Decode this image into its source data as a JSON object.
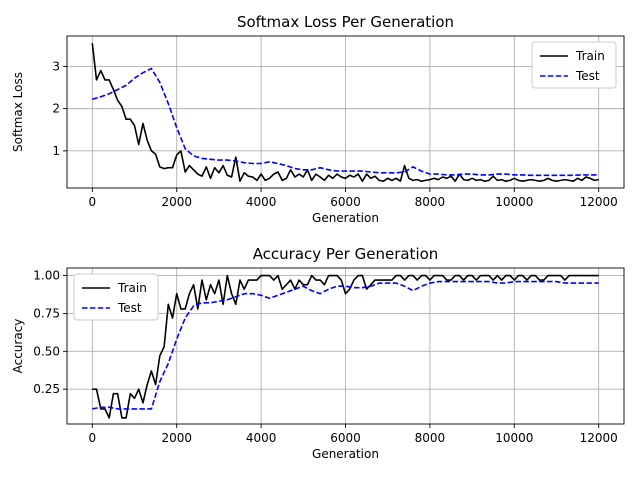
{
  "chart_data": [
    {
      "type": "line",
      "title": "Softmax Loss Per Generation",
      "xlabel": "Generation",
      "ylabel": "Softmax Loss",
      "xlim": [
        -600,
        12600
      ],
      "ylim": [
        0.12,
        3.72
      ],
      "xticks": [
        0,
        2000,
        4000,
        6000,
        8000,
        10000,
        12000
      ],
      "yticks": [
        1,
        2,
        3
      ],
      "grid": true,
      "legend": "top-right",
      "series": [
        {
          "name": "Train",
          "color": "#000000",
          "style": "solid",
          "x": [
            0,
            100,
            200,
            300,
            400,
            500,
            600,
            700,
            800,
            900,
            1000,
            1100,
            1200,
            1300,
            1400,
            1500,
            1600,
            1700,
            1800,
            1900,
            2000,
            2100,
            2200,
            2300,
            2400,
            2500,
            2600,
            2700,
            2800,
            2900,
            3000,
            3100,
            3200,
            3300,
            3400,
            3500,
            3600,
            3700,
            3800,
            3900,
            4000,
            4100,
            4200,
            4300,
            4400,
            4500,
            4600,
            4700,
            4800,
            4900,
            5000,
            5100,
            5200,
            5300,
            5400,
            5500,
            5600,
            5700,
            5800,
            5900,
            6000,
            6100,
            6200,
            6300,
            6400,
            6500,
            6600,
            6700,
            6800,
            6900,
            7000,
            7100,
            7200,
            7300,
            7400,
            7500,
            7600,
            7700,
            7800,
            7900,
            8000,
            8100,
            8200,
            8300,
            8400,
            8500,
            8600,
            8700,
            8800,
            8900,
            9000,
            9100,
            9200,
            9300,
            9400,
            9500,
            9600,
            9700,
            9800,
            9900,
            10000,
            10100,
            10200,
            10300,
            10400,
            10500,
            10600,
            10700,
            10800,
            10900,
            11000,
            11100,
            11200,
            11300,
            11400,
            11500,
            11600,
            11700,
            11800,
            11900,
            12000
          ],
          "values": [
            3.55,
            2.68,
            2.9,
            2.68,
            2.68,
            2.45,
            2.2,
            2.05,
            1.75,
            1.75,
            1.6,
            1.15,
            1.65,
            1.25,
            1.0,
            0.92,
            0.62,
            0.58,
            0.6,
            0.6,
            0.9,
            1.0,
            0.5,
            0.65,
            0.55,
            0.45,
            0.4,
            0.62,
            0.35,
            0.6,
            0.48,
            0.65,
            0.42,
            0.38,
            0.85,
            0.28,
            0.48,
            0.4,
            0.38,
            0.3,
            0.45,
            0.3,
            0.35,
            0.45,
            0.5,
            0.3,
            0.35,
            0.55,
            0.38,
            0.45,
            0.38,
            0.55,
            0.3,
            0.45,
            0.38,
            0.3,
            0.42,
            0.35,
            0.45,
            0.38,
            0.35,
            0.42,
            0.38,
            0.45,
            0.28,
            0.45,
            0.35,
            0.4,
            0.3,
            0.28,
            0.35,
            0.3,
            0.35,
            0.28,
            0.65,
            0.35,
            0.3,
            0.32,
            0.28,
            0.3,
            0.32,
            0.35,
            0.32,
            0.38,
            0.35,
            0.4,
            0.28,
            0.45,
            0.32,
            0.3,
            0.35,
            0.3,
            0.32,
            0.28,
            0.3,
            0.4,
            0.3,
            0.32,
            0.28,
            0.3,
            0.35,
            0.3,
            0.28,
            0.3,
            0.32,
            0.3,
            0.28,
            0.3,
            0.35,
            0.3,
            0.28,
            0.3,
            0.32,
            0.3,
            0.28,
            0.35,
            0.3,
            0.38,
            0.35,
            0.3,
            0.32
          ]
        },
        {
          "name": "Test",
          "color": "#0000ff",
          "style": "dashed",
          "x": [
            0,
            200,
            400,
            600,
            800,
            1000,
            1200,
            1400,
            1600,
            1800,
            2000,
            2200,
            2400,
            2600,
            2800,
            3000,
            3200,
            3400,
            3600,
            3800,
            4000,
            4200,
            4400,
            4600,
            4800,
            5000,
            5200,
            5400,
            5600,
            5800,
            6000,
            6200,
            6400,
            6600,
            6800,
            7000,
            7200,
            7400,
            7600,
            7800,
            8000,
            8200,
            8400,
            8600,
            8800,
            9000,
            9200,
            9400,
            9600,
            9800,
            10000,
            10200,
            10400,
            10600,
            10800,
            11000,
            11200,
            11400,
            11600,
            11800,
            12000
          ],
          "values": [
            2.22,
            2.28,
            2.35,
            2.45,
            2.55,
            2.72,
            2.85,
            2.95,
            2.62,
            2.12,
            1.55,
            1.05,
            0.88,
            0.82,
            0.8,
            0.78,
            0.78,
            0.76,
            0.72,
            0.7,
            0.7,
            0.74,
            0.7,
            0.65,
            0.58,
            0.55,
            0.55,
            0.6,
            0.55,
            0.52,
            0.52,
            0.52,
            0.52,
            0.5,
            0.48,
            0.48,
            0.48,
            0.5,
            0.62,
            0.52,
            0.45,
            0.45,
            0.43,
            0.43,
            0.45,
            0.45,
            0.43,
            0.43,
            0.45,
            0.45,
            0.43,
            0.43,
            0.42,
            0.42,
            0.42,
            0.42,
            0.42,
            0.42,
            0.43,
            0.43,
            0.43
          ]
        }
      ]
    },
    {
      "type": "line",
      "title": "Accuracy Per Generation",
      "xlabel": "Generation",
      "ylabel": "Accuracy",
      "xlim": [
        -600,
        12600
      ],
      "ylim": [
        0.02,
        1.05
      ],
      "xticks": [
        0,
        2000,
        4000,
        6000,
        8000,
        10000,
        12000
      ],
      "yticks": [
        0.25,
        0.5,
        0.75,
        1.0
      ],
      "ytick_labels": [
        "0.25",
        "0.50",
        "0.75",
        "1.00"
      ],
      "grid": true,
      "legend": "top-left",
      "series": [
        {
          "name": "Train",
          "color": "#000000",
          "style": "solid",
          "x": [
            0,
            100,
            200,
            300,
            400,
            500,
            600,
            700,
            800,
            900,
            1000,
            1100,
            1200,
            1300,
            1400,
            1500,
            1600,
            1700,
            1800,
            1900,
            2000,
            2100,
            2200,
            2300,
            2400,
            2500,
            2600,
            2700,
            2800,
            2900,
            3000,
            3100,
            3200,
            3300,
            3400,
            3500,
            3600,
            3700,
            3800,
            3900,
            4000,
            4100,
            4200,
            4300,
            4400,
            4500,
            4600,
            4700,
            4800,
            4900,
            5000,
            5100,
            5200,
            5300,
            5400,
            5500,
            5600,
            5700,
            5800,
            5900,
            6000,
            6100,
            6200,
            6300,
            6400,
            6500,
            6600,
            6700,
            6800,
            6900,
            7000,
            7100,
            7200,
            7300,
            7400,
            7500,
            7600,
            7700,
            7800,
            7900,
            8000,
            8100,
            8200,
            8300,
            8400,
            8500,
            8600,
            8700,
            8800,
            8900,
            9000,
            9100,
            9200,
            9300,
            9400,
            9500,
            9600,
            9700,
            9800,
            9900,
            10000,
            10100,
            10200,
            10300,
            10400,
            10500,
            10600,
            10700,
            10800,
            10900,
            11000,
            11100,
            11200,
            11300,
            11400,
            11500,
            11600,
            11700,
            11800,
            11900,
            12000
          ],
          "values": [
            0.25,
            0.25,
            0.12,
            0.12,
            0.06,
            0.22,
            0.22,
            0.06,
            0.06,
            0.22,
            0.19,
            0.25,
            0.16,
            0.28,
            0.37,
            0.28,
            0.47,
            0.53,
            0.81,
            0.72,
            0.88,
            0.78,
            0.78,
            0.88,
            0.94,
            0.78,
            0.97,
            0.84,
            0.94,
            0.88,
            0.97,
            0.81,
            1.0,
            0.88,
            0.81,
            0.97,
            0.91,
            0.97,
            0.97,
            0.97,
            1.0,
            1.0,
            1.0,
            0.97,
            1.0,
            0.91,
            0.94,
            0.97,
            0.91,
            0.97,
            0.94,
            0.94,
            1.0,
            0.97,
            0.97,
            0.94,
            1.0,
            1.0,
            1.0,
            0.97,
            0.88,
            0.91,
            0.97,
            1.0,
            1.0,
            0.91,
            0.94,
            0.97,
            0.97,
            0.97,
            0.97,
            0.97,
            1.0,
            1.0,
            0.97,
            1.0,
            1.0,
            0.97,
            1.0,
            1.0,
            0.97,
            1.0,
            1.0,
            1.0,
            0.97,
            0.97,
            1.0,
            1.0,
            0.97,
            1.0,
            1.0,
            0.97,
            1.0,
            1.0,
            1.0,
            0.97,
            1.0,
            0.97,
            1.0,
            1.0,
            0.97,
            1.0,
            1.0,
            0.97,
            1.0,
            1.0,
            0.97,
            0.97,
            1.0,
            1.0,
            1.0,
            1.0,
            0.97,
            1.0,
            1.0,
            1.0,
            1.0,
            1.0,
            1.0,
            1.0,
            1.0
          ]
        },
        {
          "name": "Test",
          "color": "#0000ff",
          "style": "dashed",
          "x": [
            0,
            200,
            400,
            600,
            800,
            1000,
            1200,
            1400,
            1600,
            1800,
            2000,
            2200,
            2400,
            2600,
            2800,
            3000,
            3200,
            3400,
            3600,
            3800,
            4000,
            4200,
            4400,
            4600,
            4800,
            5000,
            5200,
            5400,
            5600,
            5800,
            6000,
            6200,
            6400,
            6600,
            6800,
            7000,
            7200,
            7400,
            7600,
            7800,
            8000,
            8200,
            8400,
            8600,
            8800,
            9000,
            9200,
            9400,
            9600,
            9800,
            10000,
            10200,
            10400,
            10600,
            10800,
            11000,
            11200,
            11400,
            11600,
            11800,
            12000
          ],
          "values": [
            0.12,
            0.13,
            0.13,
            0.12,
            0.12,
            0.12,
            0.12,
            0.12,
            0.3,
            0.42,
            0.58,
            0.72,
            0.8,
            0.82,
            0.82,
            0.83,
            0.84,
            0.86,
            0.88,
            0.88,
            0.87,
            0.85,
            0.87,
            0.89,
            0.91,
            0.93,
            0.9,
            0.88,
            0.91,
            0.93,
            0.93,
            0.92,
            0.92,
            0.93,
            0.95,
            0.95,
            0.95,
            0.93,
            0.9,
            0.93,
            0.95,
            0.96,
            0.96,
            0.96,
            0.96,
            0.96,
            0.96,
            0.96,
            0.95,
            0.95,
            0.96,
            0.96,
            0.96,
            0.96,
            0.96,
            0.96,
            0.95,
            0.95,
            0.95,
            0.95,
            0.95
          ]
        }
      ]
    }
  ]
}
